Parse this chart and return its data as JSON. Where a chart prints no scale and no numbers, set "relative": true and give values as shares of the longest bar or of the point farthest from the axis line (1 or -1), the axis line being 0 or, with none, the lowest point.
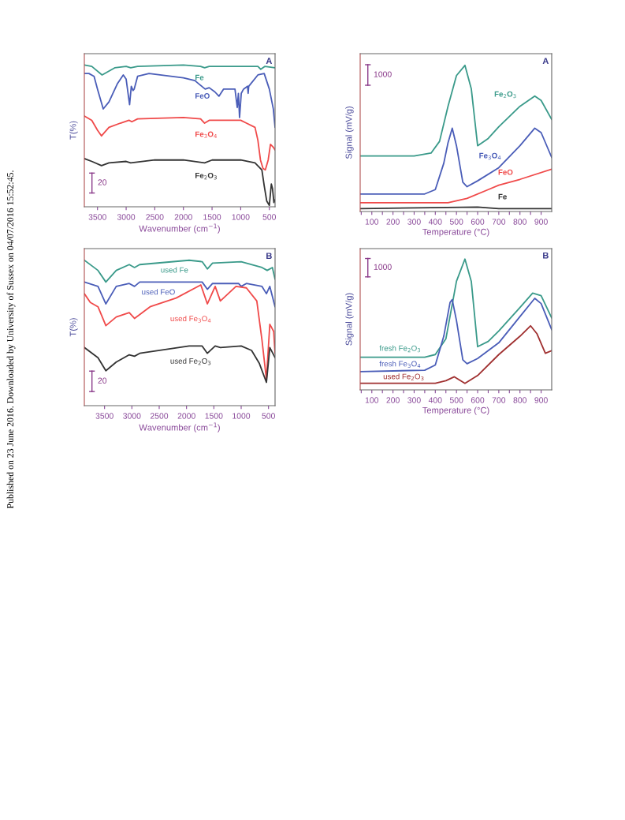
{
  "chart_data": [
    {
      "type": "line",
      "relative": true,
      "xlabel": "Wavenumber (cm$^{−1}$)",
      "ylabel": "T(%)",
      "xlim": [
        3730,
        400
      ],
      "xticks": [
        3500,
        3000,
        2500,
        2000,
        1500,
        1000,
        500
      ],
      "tick_labels": "x",
      "legend": false,
      "grid": false,
      "annotations": [
        "A",
        "20",
        "Published on 23 June 2016. Downloaded by University of Sussex on 04/07/2016 15:52:45."
      ],
      "series": [
        {
          "name": "Fe",
          "color": "#3a9a8a",
          "x": [
            3730,
            3600,
            3420,
            3200,
            3000,
            2920,
            2800,
            2000,
            1700,
            1630,
            1550,
            1100,
            700,
            650,
            580,
            400
          ],
          "values": [
            1.0,
            0.99,
            0.93,
            0.98,
            0.99,
            0.98,
            0.99,
            1.0,
            0.99,
            0.98,
            0.99,
            0.99,
            0.99,
            0.97,
            0.99,
            0.98
          ]
        },
        {
          "name": "FeO",
          "color": "#4a5db8",
          "x": [
            3730,
            3650,
            3560,
            3500,
            3400,
            3300,
            3150,
            3050,
            3000,
            2940,
            2910,
            2880,
            2860,
            2800,
            2600,
            2000,
            1800,
            1650,
            1620,
            1550,
            1450,
            1380,
            1300,
            1200,
            1100,
            1060,
            1040,
            1020,
            990,
            950,
            880,
            870,
            860,
            700,
            590,
            500,
            430,
            400
          ],
          "values": [
            0.94,
            0.94,
            0.92,
            0.83,
            0.69,
            0.74,
            0.87,
            0.93,
            0.9,
            0.72,
            0.85,
            0.82,
            0.83,
            0.92,
            0.94,
            0.91,
            0.89,
            0.84,
            0.83,
            0.84,
            0.81,
            0.78,
            0.83,
            0.83,
            0.83,
            0.7,
            0.8,
            0.63,
            0.8,
            0.83,
            0.85,
            0.8,
            0.85,
            0.93,
            0.94,
            0.83,
            0.69,
            0.56
          ]
        },
        {
          "name": "Fe$_{3}$O$_{4}$",
          "color": "#f04a4a",
          "x": [
            3730,
            3600,
            3500,
            3430,
            3300,
            3100,
            2950,
            2900,
            2800,
            2000,
            1700,
            1630,
            1550,
            1400,
            1000,
            900,
            750,
            700,
            655,
            610,
            570,
            520,
            480,
            430,
            400
          ],
          "values": [
            0.64,
            0.61,
            0.54,
            0.5,
            0.56,
            0.59,
            0.61,
            0.6,
            0.62,
            0.63,
            0.62,
            0.59,
            0.61,
            0.61,
            0.61,
            0.59,
            0.56,
            0.47,
            0.33,
            0.27,
            0.26,
            0.33,
            0.44,
            0.42,
            0.4
          ]
        },
        {
          "name": "Fe$_{2}$O$_{3}$",
          "color": "#333333",
          "x": [
            3730,
            3600,
            3430,
            3300,
            3000,
            2920,
            2500,
            2000,
            1630,
            1500,
            1000,
            750,
            630,
            590,
            545,
            500,
            465,
            445,
            420,
            400
          ],
          "values": [
            0.34,
            0.32,
            0.29,
            0.31,
            0.32,
            0.31,
            0.33,
            0.33,
            0.31,
            0.33,
            0.33,
            0.31,
            0.26,
            0.15,
            0.04,
            0.01,
            0.16,
            0.13,
            0.03,
            0.05
          ]
        }
      ]
    },
    {
      "type": "line",
      "relative": true,
      "xlabel": "Wavenumber (cm$^{−1}$)",
      "ylabel": "T(%)",
      "xlim": [
        3870,
        380
      ],
      "xticks": [
        3500,
        3000,
        2500,
        2000,
        1500,
        1000,
        500
      ],
      "tick_labels": "x",
      "legend": false,
      "grid": false,
      "annotations": [
        "B",
        "20"
      ],
      "series": [
        {
          "name": "used Fe",
          "color": "#3a9a8a",
          "x": [
            3870,
            3620,
            3476,
            3286,
            3048,
            2952,
            2857,
            1952,
            1714,
            1619,
            1524,
            1000,
            619,
            524,
            429,
            380
          ],
          "values": [
            1.0,
            0.93,
            0.85,
            0.93,
            0.97,
            0.95,
            0.97,
            1.0,
            0.99,
            0.94,
            0.98,
            0.99,
            0.95,
            0.93,
            0.95,
            0.87
          ]
        },
        {
          "name": "used FeO",
          "color": "#4a5db8",
          "x": [
            3870,
            3620,
            3476,
            3286,
            3048,
            2952,
            2857,
            1714,
            1619,
            1524,
            1048,
            1000,
            905,
            619,
            538,
            476,
            380
          ],
          "values": [
            0.85,
            0.82,
            0.7,
            0.82,
            0.84,
            0.82,
            0.85,
            0.85,
            0.8,
            0.84,
            0.84,
            0.82,
            0.84,
            0.82,
            0.77,
            0.82,
            0.68
          ]
        },
        {
          "name": "used Fe$_{3}$O$_{4}$",
          "color": "#f04a4a",
          "x": [
            3870,
            3760,
            3620,
            3476,
            3286,
            3048,
            2952,
            2667,
            2190,
            1738,
            1619,
            1476,
            1381,
            1095,
            905,
            714,
            619,
            538,
            476,
            405,
            380
          ],
          "values": [
            0.77,
            0.71,
            0.68,
            0.55,
            0.61,
            0.64,
            0.6,
            0.68,
            0.74,
            0.83,
            0.7,
            0.82,
            0.72,
            0.82,
            0.81,
            0.72,
            0.45,
            0.18,
            0.56,
            0.51,
            0.36
          ]
        },
        {
          "name": "used Fe$_{2}$O$_{3}$",
          "color": "#333333",
          "x": [
            3870,
            3620,
            3476,
            3286,
            3048,
            2952,
            2857,
            1952,
            1714,
            1619,
            1476,
            1381,
            1000,
            810,
            667,
            538,
            476,
            380
          ],
          "values": [
            0.4,
            0.33,
            0.24,
            0.3,
            0.35,
            0.34,
            0.36,
            0.41,
            0.41,
            0.36,
            0.41,
            0.4,
            0.41,
            0.38,
            0.29,
            0.16,
            0.4,
            0.33
          ]
        }
      ]
    },
    {
      "type": "line",
      "relative": true,
      "xlabel": "Temperature (°C)",
      "ylabel": "Signal (mV/g)",
      "xlim": [
        45,
        950
      ],
      "xticks": [
        {
          "value": 50,
          "label": null
        },
        100,
        {
          "value": 150,
          "label": null
        },
        200,
        {
          "value": 250,
          "label": null
        },
        300,
        {
          "value": 350,
          "label": null
        },
        400,
        {
          "value": 450,
          "label": null
        },
        500,
        {
          "value": 550,
          "label": null
        },
        600,
        {
          "value": 650,
          "label": null
        },
        700,
        {
          "value": 750,
          "label": null
        },
        800,
        {
          "value": 850,
          "label": null
        },
        900
      ],
      "tick_labels": "x",
      "legend": false,
      "grid": false,
      "annotations": [
        "A",
        "1000"
      ],
      "series": [
        {
          "name": "Fe$_{2}$O$_{3}$",
          "color": "#3a9a8a",
          "x": [
            45,
            300,
            380,
            420,
            460,
            500,
            540,
            570,
            590,
            600,
            650,
            700,
            800,
            870,
            900,
            950
          ],
          "values": [
            0.38,
            0.38,
            0.4,
            0.48,
            0.72,
            0.93,
            1.0,
            0.84,
            0.58,
            0.45,
            0.5,
            0.58,
            0.72,
            0.79,
            0.76,
            0.63
          ]
        },
        {
          "name": "Fe$_{3}$O$_{4}$",
          "color": "#4a5db8",
          "x": [
            45,
            350,
            400,
            440,
            460,
            480,
            500,
            530,
            550,
            600,
            700,
            800,
            870,
            900,
            950
          ],
          "values": [
            0.12,
            0.12,
            0.15,
            0.33,
            0.47,
            0.57,
            0.45,
            0.2,
            0.17,
            0.21,
            0.3,
            0.45,
            0.57,
            0.54,
            0.37
          ]
        },
        {
          "name": "FeO",
          "color": "#f04a4a",
          "x": [
            45,
            460,
            550,
            650,
            700,
            800,
            950
          ],
          "values": [
            0.06,
            0.06,
            0.09,
            0.15,
            0.18,
            0.22,
            0.29
          ]
        },
        {
          "name": "Fe",
          "color": "#333333",
          "x": [
            45,
            600,
            700,
            950
          ],
          "values": [
            0.02,
            0.03,
            0.02,
            0.02
          ]
        }
      ]
    },
    {
      "type": "line",
      "relative": true,
      "xlabel": "Temperature (°C)",
      "ylabel": "Signal (mV/g)",
      "xlim": [
        45,
        950
      ],
      "xticks": [
        {
          "value": 50,
          "label": null
        },
        100,
        {
          "value": 150,
          "label": null
        },
        200,
        {
          "value": 250,
          "label": null
        },
        300,
        {
          "value": 350,
          "label": null
        },
        400,
        {
          "value": 450,
          "label": null
        },
        500,
        {
          "value": 550,
          "label": null
        },
        600,
        {
          "value": 650,
          "label": null
        },
        700,
        {
          "value": 750,
          "label": null
        },
        800,
        {
          "value": 850,
          "label": null
        },
        900
      ],
      "tick_labels": "x",
      "legend": false,
      "grid": false,
      "annotations": [
        "B",
        "1000"
      ],
      "series": [
        {
          "name": "fresh Fe$_{2}$O$_{3}$",
          "color": "#3a9a8a",
          "x": [
            45,
            350,
            400,
            450,
            500,
            540,
            570,
            600,
            650,
            700,
            800,
            860,
            900,
            950
          ],
          "values": [
            0.25,
            0.25,
            0.27,
            0.39,
            0.83,
            1.0,
            0.83,
            0.33,
            0.37,
            0.45,
            0.63,
            0.74,
            0.72,
            0.55
          ]
        },
        {
          "name": "fresh Fe$_{3}$O$_{4}$",
          "color": "#4a5db8",
          "x": [
            45,
            350,
            400,
            440,
            470,
            480,
            500,
            530,
            550,
            600,
            700,
            800,
            870,
            900,
            950
          ],
          "values": [
            0.14,
            0.15,
            0.19,
            0.41,
            0.67,
            0.69,
            0.53,
            0.23,
            0.2,
            0.24,
            0.36,
            0.56,
            0.7,
            0.66,
            0.46
          ]
        },
        {
          "name": "used Fe$_{2}$O$_{3}$",
          "color": "#a03030",
          "x": [
            45,
            400,
            450,
            490,
            540,
            600,
            700,
            800,
            850,
            880,
            920,
            950
          ],
          "values": [
            0.05,
            0.05,
            0.07,
            0.1,
            0.05,
            0.11,
            0.27,
            0.41,
            0.49,
            0.43,
            0.28,
            0.3
          ]
        }
      ]
    }
  ]
}
